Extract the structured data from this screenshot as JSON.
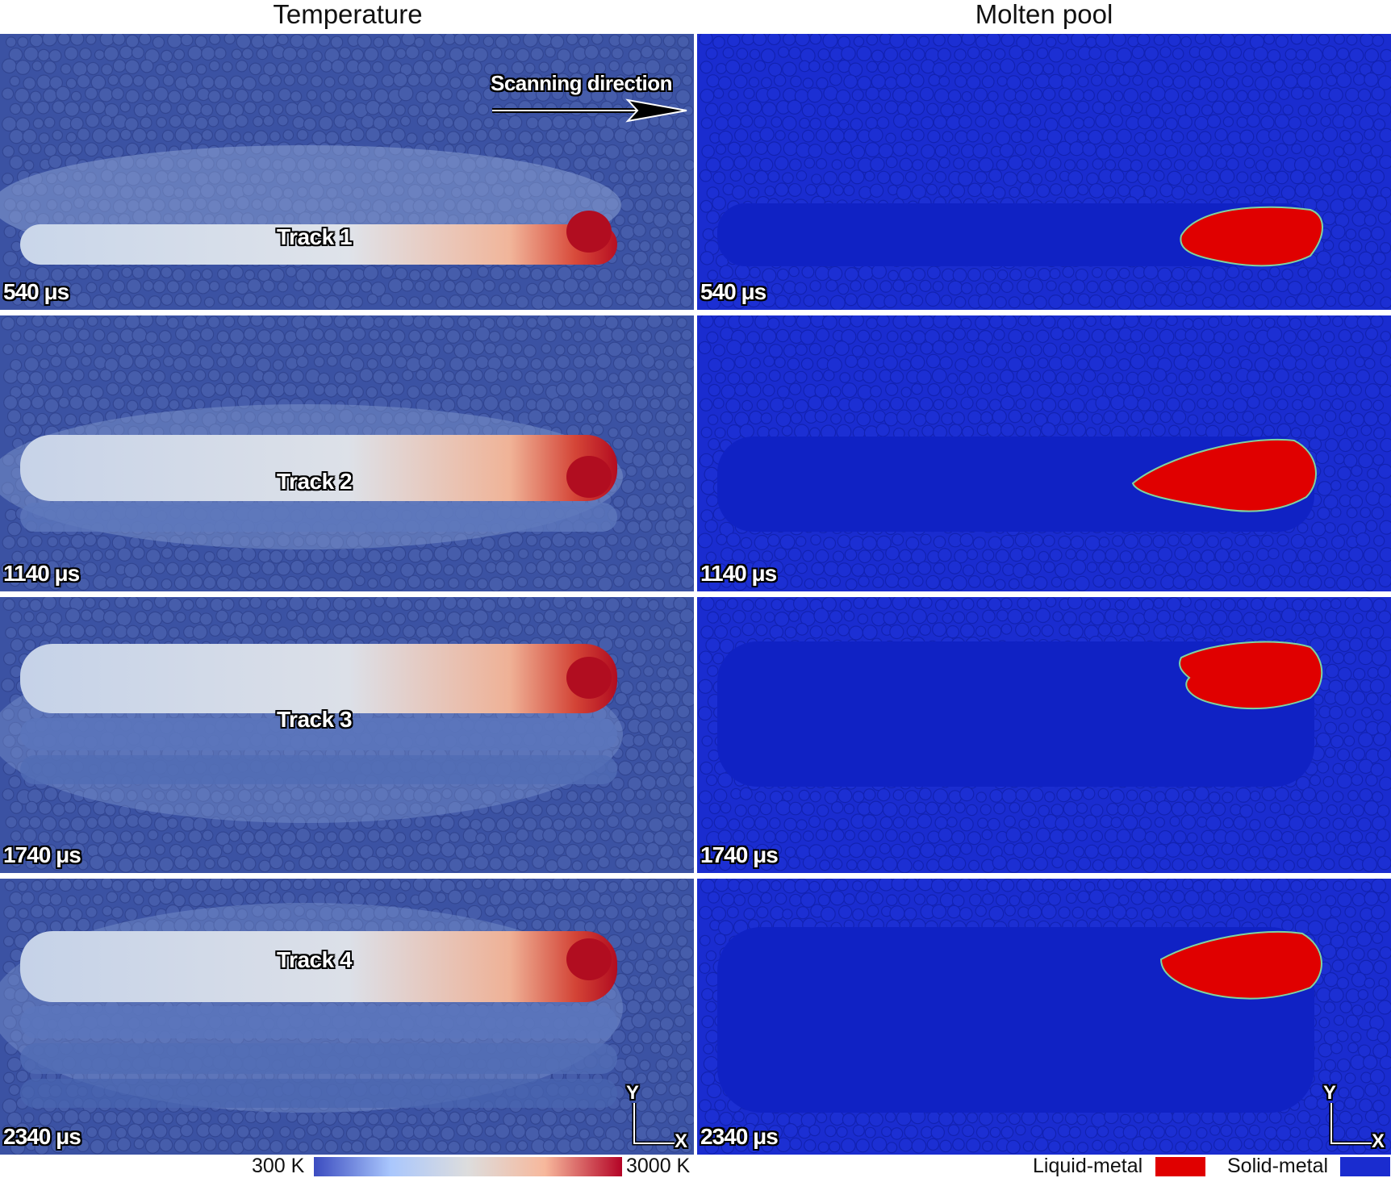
{
  "columns": {
    "temperature_title": "Temperature",
    "molten_pool_title": "Molten pool"
  },
  "scanning_direction_label": "Scanning direction",
  "rows": [
    {
      "time": "540 μs",
      "track": "Track 1"
    },
    {
      "time": "1140 μs",
      "track": "Track 2"
    },
    {
      "time": "1740 μs",
      "track": "Track 3"
    },
    {
      "time": "2340 μs",
      "track": "Track 4"
    }
  ],
  "temperature_scale": {
    "min_label": "300 K",
    "max_label": "3000 K",
    "colors": [
      "#3b4cc0",
      "#aac7fd",
      "#dddddd",
      "#f7b89c",
      "#b40426"
    ]
  },
  "phase_legend": {
    "liquid_label": "Liquid-metal",
    "liquid_color": "#e00000",
    "solid_label": "Solid-metal",
    "solid_color": "#1a2ccf"
  },
  "axes": {
    "y": "Y",
    "x": "X"
  }
}
